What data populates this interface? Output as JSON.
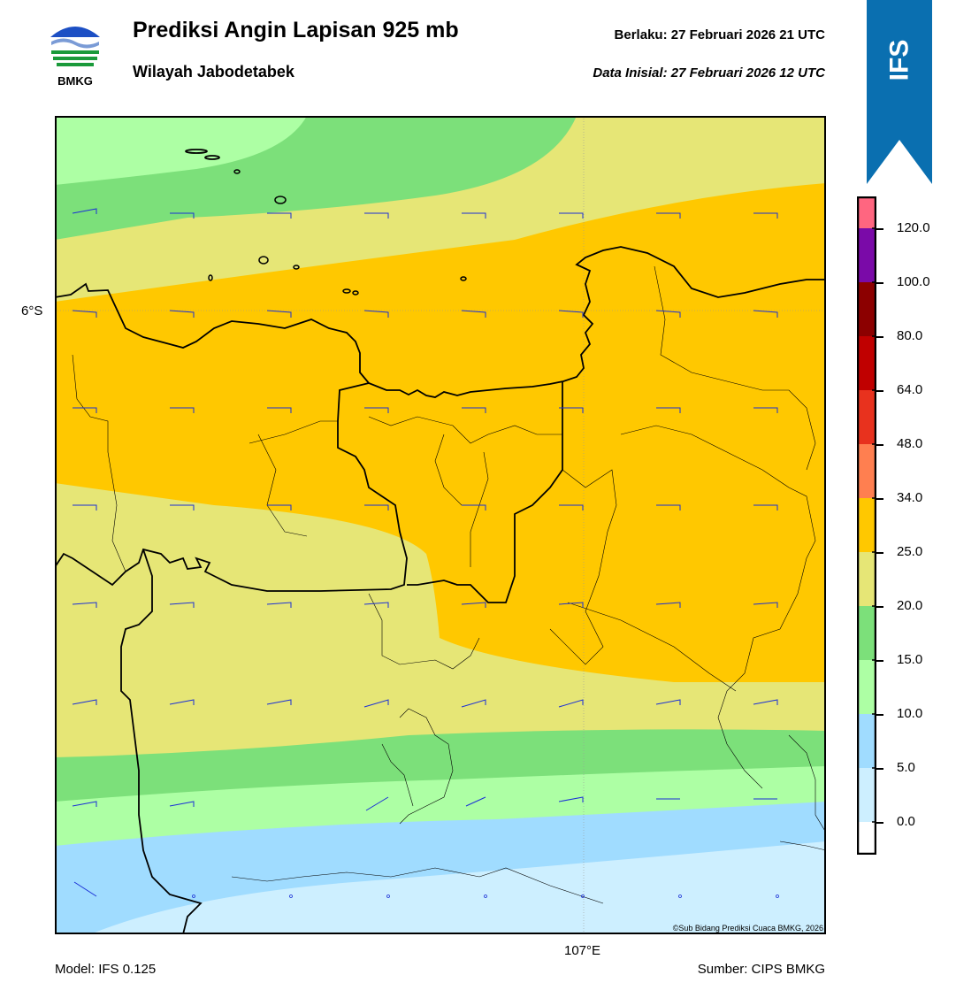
{
  "header": {
    "title": "Prediksi Angin Lapisan 925 mb",
    "subtitle": "Wilayah Jabodetabek",
    "valid": "Berlaku:  27 Februari 2026 21 UTC",
    "init": "Data Inisial:  27 Februari 2026 12 UTC",
    "logo_text": "BMKG",
    "badge": "IFS"
  },
  "map": {
    "lat_label": "6°S",
    "lon_label": "107°E",
    "credit": "©Sub Bidang Prediksi Cuaca BMKG, 2026"
  },
  "footer": {
    "model": "Model: IFS 0.125",
    "source": "Sumber: CIPS BMKG"
  },
  "legend": {
    "ticks": [
      "120.0",
      "100.0",
      "80.0",
      "64.0",
      "48.0",
      "34.0",
      "25.0",
      "20.0",
      "15.0",
      "10.0",
      "5.0",
      "0.0"
    ],
    "colors": [
      "#ff6680",
      "#7a0aa8",
      "#8c0000",
      "#c00000",
      "#e8321e",
      "#ff7f50",
      "#ffc800",
      "#e6e676",
      "#7ce07a",
      "#adffa4",
      "#a0dcff",
      "#cdefff",
      "#ffffff"
    ]
  },
  "colors": {
    "banner": "#0a6fb0",
    "barb": "#1a2fd6",
    "coast": "#000000"
  }
}
